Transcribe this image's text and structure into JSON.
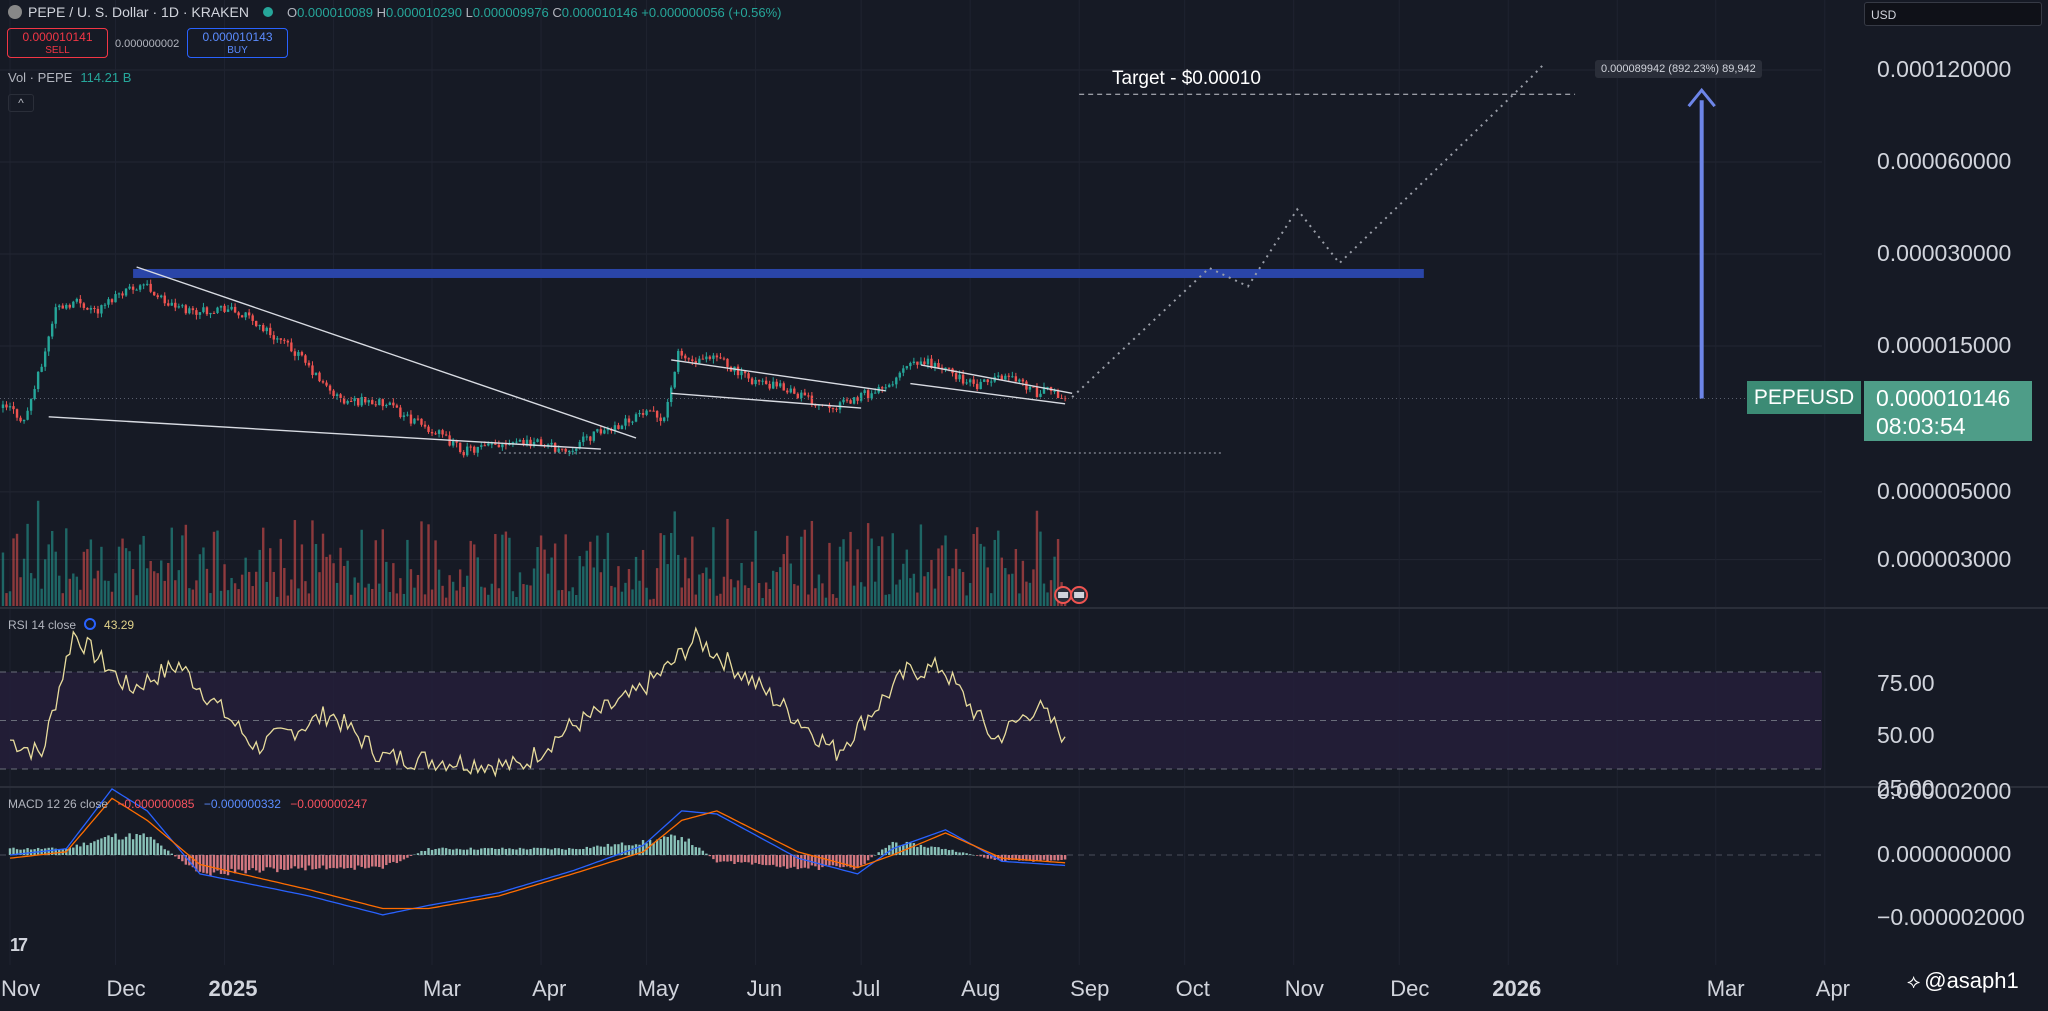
{
  "header": {
    "symbol": "PEPE / U. S. Dollar · 1D · KRAKEN",
    "open_label": "O",
    "open": "0.000010089",
    "high_label": "H",
    "high": "0.000010290",
    "low_label": "L",
    "low": "0.000009976",
    "close_label": "C",
    "close": "0.000010146",
    "change": "+0.000000056 (+0.56%)"
  },
  "trade": {
    "sell_price": "0.000010141",
    "sell_label": "SELL",
    "spread": "0.000000002",
    "buy_price": "0.000010143",
    "buy_label": "BUY"
  },
  "volume": {
    "label": "Vol · PEPE",
    "value": "114.21 B"
  },
  "collapse_glyph": "^",
  "currency": "USD",
  "price_tag": {
    "symbol": "PEPEUSD",
    "price": "0.000010146",
    "countdown": "08:03:54"
  },
  "colors": {
    "background": "#161a25",
    "up": "#26a69a",
    "down": "#ef5350",
    "resistance": "#2a45a8",
    "rsi_line": "#e8dc9c",
    "macd_line": "#2962ff",
    "signal_line": "#ff6d00"
  },
  "rsi": {
    "title": "RSI 14 close",
    "value": "43.29"
  },
  "macd": {
    "title": "MACD 12 26 close",
    "histogram": "−0.000000085",
    "macd": "−0.000000332",
    "signal": "−0.000000247"
  },
  "annotations": {
    "target": "Target - $0.00010",
    "measure": "0.000089942 (892.23%) 89,942"
  },
  "credit": {
    "glyph": "⟡",
    "text": "@asaph1"
  },
  "chart_data": [
    {
      "type": "candlestick",
      "symbol": "PEPEUSD",
      "scale": "log",
      "y_ticks": [
        "0.000120000",
        "0.000060000",
        "0.000030000",
        "0.000015000",
        "0.000005000",
        "0.000003000"
      ],
      "x_ticks": [
        "Nov",
        "Dec",
        "2025",
        "Mar",
        "Apr",
        "May",
        "Jun",
        "Jul",
        "Aug",
        "Sep",
        "Oct",
        "Nov",
        "Dec",
        "2026",
        "Mar",
        "Apr"
      ],
      "series": [
        {
          "x": [
            "2024-11-01",
            "2024-11-05",
            "2024-11-10",
            "2024-11-14",
            "2024-11-20",
            "2024-11-26",
            "2024-12-02",
            "2024-12-09",
            "2024-12-16",
            "2024-12-23",
            "2025-01-01",
            "2025-01-08",
            "2025-01-15",
            "2025-01-22",
            "2025-01-29",
            "2025-02-04",
            "2025-02-10",
            "2025-02-17",
            "2025-02-24",
            "2025-03-03",
            "2025-03-10",
            "2025-03-17",
            "2025-03-24",
            "2025-04-01",
            "2025-04-08",
            "2025-04-15",
            "2025-04-22",
            "2025-04-29",
            "2025-05-06",
            "2025-05-10",
            "2025-05-15",
            "2025-05-22",
            "2025-05-28",
            "2025-06-04",
            "2025-06-11",
            "2025-06-18",
            "2025-06-25",
            "2025-07-02",
            "2025-07-08",
            "2025-07-14",
            "2025-07-20",
            "2025-07-27",
            "2025-08-03",
            "2025-08-10",
            "2025-08-14",
            "2025-08-20",
            "2025-08-24",
            "2025-08-28"
          ],
          "values": [
            9.4e-06,
            8.5e-06,
            1.3e-05,
            2e-05,
            2.1e-05,
            1.95e-05,
            2.25e-05,
            2.4e-05,
            2.05e-05,
            1.95e-05,
            2e-05,
            1.85e-05,
            1.62e-05,
            1.4e-05,
            1.12e-05,
            9.8e-06,
            1e-05,
            9.5e-06,
            8.5e-06,
            7.7e-06,
            6.8e-06,
            7e-06,
            7.4e-06,
            7.2e-06,
            6.8e-06,
            7.6e-06,
            8.2e-06,
            9e-06,
            8.8e-06,
            1.4e-05,
            1.32e-05,
            1.37e-05,
            1.2e-05,
            1.12e-05,
            1.08e-05,
            9.8e-06,
            9.6e-06,
            1.04e-05,
            1.08e-05,
            1.28e-05,
            1.33e-05,
            1.22e-05,
            1.1e-05,
            1.2e-05,
            1.18e-05,
            1.05e-05,
            1.08e-05,
            1.01e-05
          ]
        }
      ]
    },
    {
      "type": "bar",
      "name": "Vol · PEPE",
      "last_value": "114.21 B"
    },
    {
      "type": "line",
      "name": "RSI 14 close",
      "y_ticks": [
        "75.00",
        "50.00",
        "25.00"
      ],
      "ylim": [
        20,
        90
      ],
      "band": [
        30,
        70
      ],
      "x": [
        "2024-11-01",
        "2024-11-10",
        "2024-11-19",
        "2024-12-05",
        "2024-12-19",
        "2025-01-10",
        "2025-01-31",
        "2025-02-15",
        "2025-03-08",
        "2025-03-26",
        "2025-04-09",
        "2025-04-27",
        "2025-05-08",
        "2025-05-15",
        "2025-06-02",
        "2025-06-24",
        "2025-07-14",
        "2025-07-24",
        "2025-08-08",
        "2025-08-20",
        "2025-08-28"
      ],
      "values": [
        42,
        36,
        86,
        63,
        73,
        39,
        53,
        35,
        33,
        31,
        47,
        60,
        73,
        84,
        64,
        37,
        70,
        72,
        42,
        56,
        43.29
      ]
    },
    {
      "type": "line",
      "name": "MACD 12 26 close",
      "y_ticks": [
        "0.000002000",
        "0.000000000",
        "−0.000002000"
      ],
      "ylim": [
        -2.6e-06,
        2.6e-06
      ],
      "x": [
        "2024-11-01",
        "2024-11-17",
        "2024-11-30",
        "2024-12-10",
        "2024-12-25",
        "2025-01-25",
        "2025-02-15",
        "2025-02-28",
        "2025-03-20",
        "2025-04-10",
        "2025-04-30",
        "2025-05-11",
        "2025-05-21",
        "2025-06-13",
        "2025-06-30",
        "2025-07-10",
        "2025-07-25",
        "2025-08-10",
        "2025-08-28"
      ],
      "series": [
        {
          "values": [
            0,
            2e-07,
            2.1e-06,
            1.4e-06,
            -6e-07,
            -1.3e-06,
            -1.9e-06,
            -1.6e-06,
            -1.2e-06,
            -5e-07,
            3e-07,
            1.4e-06,
            1.3e-06,
            -1e-07,
            -6e-07,
            2e-07,
            8e-07,
            -2e-07,
            -3.32e-07
          ]
        },
        {
          "values": [
            -1e-07,
            1e-07,
            1.8e-06,
            1.1e-06,
            -3e-07,
            -1.1e-06,
            -1.7e-06,
            -1.7e-06,
            -1.3e-06,
            -6e-07,
            1e-07,
            1.1e-06,
            1.4e-06,
            1e-07,
            -4e-07,
            0,
            7e-07,
            -1e-07,
            -2.47e-07
          ]
        }
      ]
    }
  ]
}
